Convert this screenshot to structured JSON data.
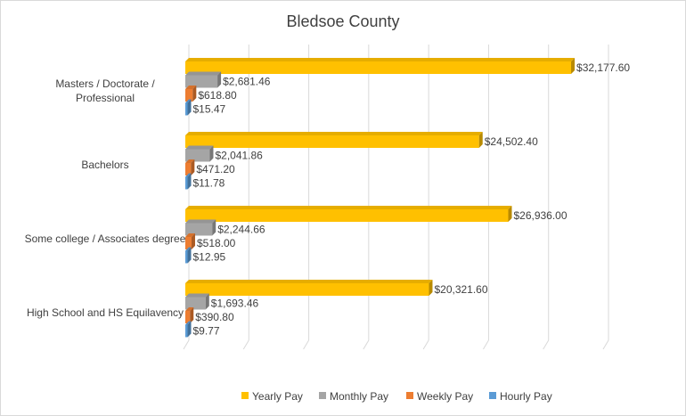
{
  "chart_data": {
    "type": "bar",
    "orientation": "horizontal",
    "title": "Bledsoe County",
    "xlabel": "",
    "ylabel": "",
    "xlim": [
      0,
      35000
    ],
    "categories": [
      "Masters / Doctorate / Professional",
      "Bachelors",
      "Some college / Associates degree",
      "High School and HS Equilavency"
    ],
    "category_lines": [
      [
        "Masters / Doctorate /",
        "Professional"
      ],
      [
        "Bachelors"
      ],
      [
        "Some college / Associates degree"
      ],
      [
        "High School and HS Equilavency"
      ]
    ],
    "series": [
      {
        "name": "Yearly Pay",
        "color": "#FFC000",
        "values": [
          32177.6,
          24502.4,
          26936.0,
          20321.6
        ],
        "labels": [
          "$32,177.60",
          "$24,502.40",
          "$26,936.00",
          "$20,321.60"
        ]
      },
      {
        "name": "Monthly Pay",
        "color": "#A5A5A5",
        "values": [
          2681.46,
          2041.86,
          2244.66,
          1693.46
        ],
        "labels": [
          "$2,681.46",
          "$2,041.86",
          "$2,244.66",
          "$1,693.46"
        ]
      },
      {
        "name": "Weekly Pay",
        "color": "#ED7D31",
        "values": [
          618.8,
          471.2,
          518.0,
          390.8
        ],
        "labels": [
          "$618.80",
          "$471.20",
          "$518.00",
          "$390.80"
        ]
      },
      {
        "name": "Hourly Pay",
        "color": "#5B9BD5",
        "values": [
          15.47,
          11.78,
          12.95,
          9.77
        ],
        "labels": [
          "$15.47",
          "$11.78",
          "$12.95",
          "$9.77"
        ]
      }
    ],
    "grid": true,
    "legend": "bottom",
    "style": "3d-clustered-bar"
  }
}
